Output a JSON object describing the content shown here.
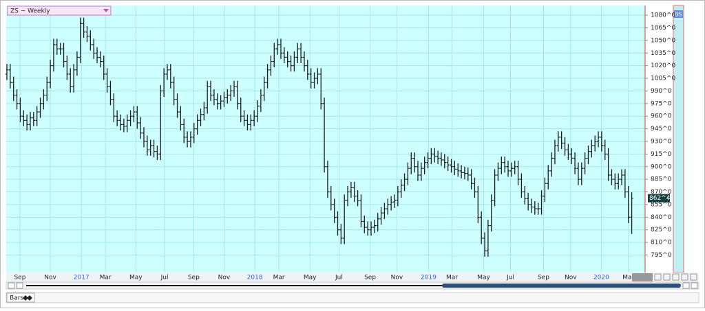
{
  "ui": {
    "symbol": "ZS ~ Weekly",
    "panel_label": "BS",
    "tab": "Bars"
  },
  "chart_data": {
    "type": "ohlc",
    "color": "#1a1a1a",
    "background": "#ccfffe",
    "grid_color": "#a4e6ea",
    "year_color": "#2f5fd0",
    "grid": true,
    "xlim": [
      0,
      191
    ],
    "ylim": [
      775,
      1091.5
    ],
    "yticks": [
      {
        "value": 1080,
        "label": "1080^0"
      },
      {
        "value": 1065,
        "label": "1065^0"
      },
      {
        "value": 1050,
        "label": "1050^0"
      },
      {
        "value": 1035,
        "label": "1035^0"
      },
      {
        "value": 1020,
        "label": "1020^0"
      },
      {
        "value": 1005,
        "label": "1005^0"
      },
      {
        "value": 990,
        "label": "990^0"
      },
      {
        "value": 975,
        "label": "975^0"
      },
      {
        "value": 960,
        "label": "960^0"
      },
      {
        "value": 945,
        "label": "945^0"
      },
      {
        "value": 930,
        "label": "930^0"
      },
      {
        "value": 915,
        "label": "915^0"
      },
      {
        "value": 900,
        "label": "900^0"
      },
      {
        "value": 885,
        "label": "885^0"
      },
      {
        "value": 870,
        "label": "870^0"
      },
      {
        "value": 855,
        "label": "855^0"
      },
      {
        "value": 840,
        "label": "840^0"
      },
      {
        "value": 825,
        "label": "825^0"
      },
      {
        "value": 810,
        "label": "810^0"
      },
      {
        "value": 795,
        "label": "795^0"
      }
    ],
    "xticks": [
      {
        "value": 3.9,
        "label": "Sep"
      },
      {
        "value": 13,
        "label": "Nov"
      },
      {
        "value": 22.3,
        "label": "2017",
        "year": true
      },
      {
        "value": 29.5,
        "label": "Mar"
      },
      {
        "value": 38.6,
        "label": "May"
      },
      {
        "value": 47.2,
        "label": "Jul"
      },
      {
        "value": 55.9,
        "label": "Sep"
      },
      {
        "value": 65,
        "label": "Nov"
      },
      {
        "value": 74.2,
        "label": "2018",
        "year": true
      },
      {
        "value": 81.4,
        "label": "Mar"
      },
      {
        "value": 90.7,
        "label": "May"
      },
      {
        "value": 99.4,
        "label": "Jul"
      },
      {
        "value": 108.7,
        "label": "Sep"
      },
      {
        "value": 116.7,
        "label": "Nov"
      },
      {
        "value": 126.2,
        "label": "2019",
        "year": true
      },
      {
        "value": 133.2,
        "label": "Mar"
      },
      {
        "value": 142.7,
        "label": "May"
      },
      {
        "value": 150.7,
        "label": "Jul"
      },
      {
        "value": 160.6,
        "label": "Sep"
      },
      {
        "value": 168.7,
        "label": "Nov"
      },
      {
        "value": 177.9,
        "label": "2020",
        "year": true
      },
      {
        "value": 186,
        "label": "Mar"
      }
    ],
    "last_price": {
      "value": 862.5,
      "label": "862^4"
    },
    "ohlc": [
      [
        1010,
        1022,
        1003,
        1015
      ],
      [
        1015,
        1022,
        993,
        1000
      ],
      [
        1000,
        1007,
        978,
        985
      ],
      [
        985,
        992,
        968,
        975
      ],
      [
        975,
        982,
        953,
        960
      ],
      [
        960,
        967,
        948,
        955
      ],
      [
        955,
        962,
        943,
        950
      ],
      [
        950,
        965,
        943,
        958
      ],
      [
        958,
        965,
        948,
        955
      ],
      [
        955,
        972,
        948,
        965
      ],
      [
        965,
        982,
        958,
        975
      ],
      [
        975,
        992,
        968,
        985
      ],
      [
        985,
        1007,
        978,
        1000
      ],
      [
        1000,
        1027,
        993,
        1020
      ],
      [
        1020,
        1052,
        1013,
        1045
      ],
      [
        1045,
        1052,
        1033,
        1040
      ],
      [
        1040,
        1047,
        1033,
        1040
      ],
      [
        1040,
        1047,
        1018,
        1025
      ],
      [
        1025,
        1032,
        1003,
        1010
      ],
      [
        1010,
        1017,
        988,
        995
      ],
      [
        995,
        1022,
        988,
        1015
      ],
      [
        1015,
        1037,
        1008,
        1030
      ],
      [
        1030,
        1077,
        1023,
        1070
      ],
      [
        1070,
        1077,
        1053,
        1060
      ],
      [
        1060,
        1067,
        1048,
        1055
      ],
      [
        1055,
        1062,
        1038,
        1045
      ],
      [
        1045,
        1052,
        1028,
        1035
      ],
      [
        1035,
        1042,
        1023,
        1030
      ],
      [
        1030,
        1037,
        1018,
        1025
      ],
      [
        1025,
        1032,
        1003,
        1010
      ],
      [
        1010,
        1017,
        988,
        995
      ],
      [
        995,
        1002,
        973,
        980
      ],
      [
        980,
        987,
        953,
        960
      ],
      [
        960,
        967,
        948,
        955
      ],
      [
        955,
        962,
        943,
        950
      ],
      [
        950,
        957,
        941,
        948
      ],
      [
        948,
        962,
        941,
        955
      ],
      [
        955,
        967,
        948,
        960
      ],
      [
        960,
        972,
        953,
        965
      ],
      [
        965,
        972,
        945,
        952
      ],
      [
        952,
        959,
        933,
        940
      ],
      [
        940,
        947,
        923,
        930
      ],
      [
        930,
        937,
        913,
        920
      ],
      [
        920,
        932,
        913,
        925
      ],
      [
        925,
        932,
        911,
        918
      ],
      [
        918,
        925,
        908,
        915
      ],
      [
        915,
        997,
        908,
        990
      ],
      [
        990,
        1017,
        983,
        1010
      ],
      [
        1010,
        1022,
        1003,
        1015
      ],
      [
        1015,
        1022,
        993,
        1000
      ],
      [
        1000,
        1007,
        973,
        980
      ],
      [
        980,
        987,
        958,
        965
      ],
      [
        965,
        972,
        943,
        950
      ],
      [
        950,
        957,
        928,
        935
      ],
      [
        935,
        942,
        923,
        930
      ],
      [
        930,
        942,
        923,
        935
      ],
      [
        935,
        952,
        928,
        945
      ],
      [
        945,
        962,
        938,
        955
      ],
      [
        955,
        969,
        948,
        962
      ],
      [
        962,
        977,
        955,
        970
      ],
      [
        970,
        1002,
        963,
        995
      ],
      [
        995,
        1002,
        978,
        985
      ],
      [
        985,
        992,
        973,
        980
      ],
      [
        980,
        987,
        968,
        975
      ],
      [
        975,
        985,
        968,
        978
      ],
      [
        978,
        989,
        971,
        982
      ],
      [
        982,
        992,
        975,
        985
      ],
      [
        985,
        997,
        978,
        990
      ],
      [
        990,
        1002,
        983,
        995
      ],
      [
        995,
        1002,
        968,
        975
      ],
      [
        975,
        982,
        953,
        960
      ],
      [
        960,
        967,
        948,
        955
      ],
      [
        955,
        962,
        943,
        950
      ],
      [
        950,
        962,
        943,
        955
      ],
      [
        955,
        967,
        948,
        960
      ],
      [
        960,
        979,
        953,
        972
      ],
      [
        972,
        992,
        965,
        985
      ],
      [
        985,
        1007,
        978,
        1000
      ],
      [
        1000,
        1022,
        993,
        1015
      ],
      [
        1015,
        1032,
        1008,
        1025
      ],
      [
        1025,
        1047,
        1018,
        1040
      ],
      [
        1040,
        1052,
        1033,
        1045
      ],
      [
        1045,
        1052,
        1028,
        1035
      ],
      [
        1035,
        1042,
        1023,
        1030
      ],
      [
        1030,
        1037,
        1018,
        1025
      ],
      [
        1025,
        1032,
        1013,
        1020
      ],
      [
        1020,
        1037,
        1013,
        1030
      ],
      [
        1030,
        1047,
        1023,
        1040
      ],
      [
        1040,
        1047,
        1023,
        1030
      ],
      [
        1030,
        1037,
        1013,
        1020
      ],
      [
        1020,
        1027,
        1003,
        1010
      ],
      [
        1010,
        1017,
        993,
        1000
      ],
      [
        1000,
        1012,
        993,
        1005
      ],
      [
        1005,
        1017,
        998,
        1010
      ],
      [
        1010,
        1017,
        968,
        975
      ],
      [
        975,
        982,
        893,
        900
      ],
      [
        900,
        907,
        863,
        870
      ],
      [
        870,
        877,
        848,
        855
      ],
      [
        855,
        862,
        833,
        840
      ],
      [
        840,
        847,
        818,
        825
      ],
      [
        825,
        832,
        808,
        815
      ],
      [
        815,
        867,
        808,
        860
      ],
      [
        860,
        877,
        853,
        870
      ],
      [
        870,
        882,
        863,
        875
      ],
      [
        875,
        882,
        858,
        865
      ],
      [
        865,
        872,
        853,
        860
      ],
      [
        860,
        867,
        828,
        835
      ],
      [
        835,
        842,
        821,
        828
      ],
      [
        828,
        835,
        818,
        825
      ],
      [
        825,
        835,
        818,
        828
      ],
      [
        828,
        837,
        821,
        830
      ],
      [
        830,
        845,
        823,
        838
      ],
      [
        838,
        852,
        831,
        845
      ],
      [
        845,
        857,
        838,
        850
      ],
      [
        850,
        862,
        843,
        855
      ],
      [
        855,
        865,
        848,
        858
      ],
      [
        858,
        867,
        851,
        860
      ],
      [
        860,
        877,
        853,
        870
      ],
      [
        870,
        885,
        863,
        878
      ],
      [
        878,
        892,
        871,
        885
      ],
      [
        885,
        905,
        878,
        898
      ],
      [
        898,
        917,
        891,
        910
      ],
      [
        910,
        917,
        893,
        900
      ],
      [
        900,
        907,
        883,
        890
      ],
      [
        890,
        905,
        883,
        898
      ],
      [
        898,
        912,
        891,
        905
      ],
      [
        905,
        917,
        898,
        910
      ],
      [
        910,
        922,
        903,
        915
      ],
      [
        915,
        922,
        905,
        912
      ],
      [
        912,
        919,
        903,
        910
      ],
      [
        910,
        917,
        901,
        908
      ],
      [
        908,
        915,
        898,
        905
      ],
      [
        905,
        912,
        895,
        902
      ],
      [
        902,
        909,
        893,
        900
      ],
      [
        900,
        907,
        890,
        897
      ],
      [
        897,
        904,
        888,
        895
      ],
      [
        895,
        902,
        886,
        893
      ],
      [
        893,
        900,
        885,
        892
      ],
      [
        892,
        899,
        883,
        890
      ],
      [
        890,
        897,
        873,
        880
      ],
      [
        880,
        887,
        863,
        870
      ],
      [
        870,
        877,
        833,
        840
      ],
      [
        840,
        847,
        808,
        815
      ],
      [
        815,
        822,
        793,
        800
      ],
      [
        800,
        837,
        793,
        830
      ],
      [
        830,
        867,
        823,
        860
      ],
      [
        860,
        897,
        853,
        890
      ],
      [
        890,
        905,
        883,
        898
      ],
      [
        898,
        912,
        891,
        905
      ],
      [
        905,
        912,
        893,
        900
      ],
      [
        900,
        907,
        888,
        895
      ],
      [
        895,
        905,
        888,
        898
      ],
      [
        898,
        907,
        891,
        900
      ],
      [
        900,
        907,
        878,
        885
      ],
      [
        885,
        892,
        863,
        870
      ],
      [
        870,
        877,
        855,
        862
      ],
      [
        862,
        869,
        848,
        855
      ],
      [
        855,
        862,
        845,
        852
      ],
      [
        852,
        859,
        843,
        850
      ],
      [
        850,
        857,
        843,
        850
      ],
      [
        850,
        872,
        843,
        865
      ],
      [
        865,
        887,
        858,
        880
      ],
      [
        880,
        902,
        873,
        895
      ],
      [
        895,
        917,
        888,
        910
      ],
      [
        910,
        932,
        903,
        925
      ],
      [
        925,
        942,
        918,
        935
      ],
      [
        935,
        942,
        921,
        928
      ],
      [
        928,
        935,
        913,
        920
      ],
      [
        920,
        927,
        908,
        915
      ],
      [
        915,
        922,
        903,
        910
      ],
      [
        910,
        917,
        891,
        898
      ],
      [
        898,
        905,
        878,
        885
      ],
      [
        885,
        905,
        878,
        898
      ],
      [
        898,
        917,
        891,
        910
      ],
      [
        910,
        925,
        903,
        918
      ],
      [
        918,
        932,
        911,
        925
      ],
      [
        925,
        937,
        918,
        930
      ],
      [
        930,
        942,
        923,
        935
      ],
      [
        935,
        942,
        918,
        925
      ],
      [
        925,
        932,
        908,
        915
      ],
      [
        915,
        922,
        883,
        890
      ],
      [
        890,
        897,
        878,
        885
      ],
      [
        885,
        892,
        873,
        880
      ],
      [
        880,
        892,
        873,
        885
      ],
      [
        885,
        897,
        878,
        890
      ],
      [
        890,
        897,
        863,
        870
      ],
      [
        870,
        877,
        833,
        840
      ],
      [
        840,
        869.5,
        820,
        862.5
      ]
    ]
  }
}
